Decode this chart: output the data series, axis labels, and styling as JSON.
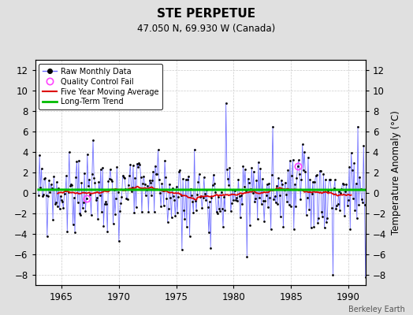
{
  "title": "STE PERPETUE",
  "subtitle": "47.050 N, 69.930 W (Canada)",
  "ylabel": "Temperature Anomaly (°C)",
  "credit": "Berkeley Earth",
  "year_start": 1963,
  "year_end": 1992,
  "ylim": [
    -9,
    13
  ],
  "yticks": [
    -8,
    -6,
    -4,
    -2,
    0,
    2,
    4,
    6,
    8,
    10,
    12
  ],
  "xticks": [
    1965,
    1970,
    1975,
    1980,
    1985,
    1990
  ],
  "bg_color": "#e0e0e0",
  "plot_bg_color": "#ffffff",
  "line_color": "#6666ff",
  "marker_color": "#000000",
  "ma_color": "#dd0000",
  "trend_color": "#00bb00",
  "qc_color": "#ff44ff",
  "legend_items": [
    {
      "label": "Raw Monthly Data"
    },
    {
      "label": "Quality Control Fail"
    },
    {
      "label": "Five Year Moving Average"
    },
    {
      "label": "Long-Term Trend"
    }
  ]
}
